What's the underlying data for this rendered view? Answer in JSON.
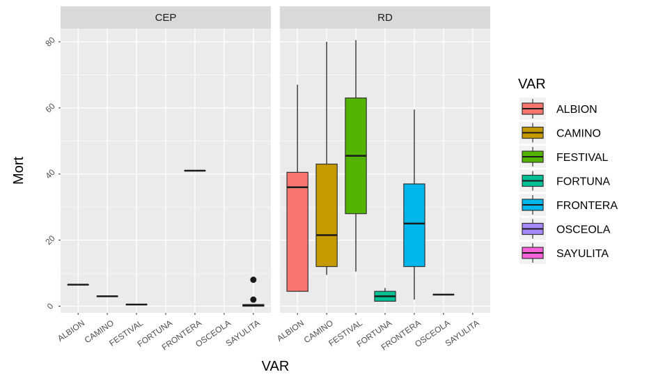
{
  "chart_data": {
    "type": "box",
    "xlabel": "VAR",
    "ylabel": "Mort",
    "ylim": [
      -2,
      84
    ],
    "yticks": [
      0,
      20,
      40,
      60,
      80
    ],
    "categories": [
      "ALBION",
      "CAMINO",
      "FESTIVAL",
      "FORTUNA",
      "FRONTERA",
      "OSCEOLA",
      "SAYULITA"
    ],
    "legend": {
      "title": "VAR",
      "position": "right",
      "entries": [
        {
          "label": "ALBION",
          "color": "#F8766D"
        },
        {
          "label": "CAMINO",
          "color": "#C49A00"
        },
        {
          "label": "FESTIVAL",
          "color": "#53B400"
        },
        {
          "label": "FORTUNA",
          "color": "#00C094"
        },
        {
          "label": "FRONTERA",
          "color": "#00B6EB"
        },
        {
          "label": "OSCEOLA",
          "color": "#A58AFF"
        },
        {
          "label": "SAYULITA",
          "color": "#FB61D7"
        }
      ]
    },
    "panels": [
      {
        "strip": "CEP",
        "boxes": [
          {
            "category": "ALBION",
            "min": 6.5,
            "q1": 6.5,
            "median": 6.5,
            "q3": 6.5,
            "max": 6.5,
            "outliers": []
          },
          {
            "category": "CAMINO",
            "min": 3,
            "q1": 3,
            "median": 3,
            "q3": 3,
            "max": 3,
            "outliers": []
          },
          {
            "category": "FESTIVAL",
            "min": 0.5,
            "q1": 0.5,
            "median": 0.5,
            "q3": 0.5,
            "max": 0.5,
            "outliers": []
          },
          {
            "category": "FRONTERA",
            "min": 41,
            "q1": 41,
            "median": 41,
            "q3": 41,
            "max": 41,
            "outliers": []
          },
          {
            "category": "SAYULITA",
            "min": 0,
            "q1": 0,
            "median": 0.3,
            "q3": 0.5,
            "max": 0.5,
            "outliers": [
              2,
              8
            ]
          }
        ]
      },
      {
        "strip": "RD",
        "boxes": [
          {
            "category": "ALBION",
            "min": 4.5,
            "q1": 4.5,
            "median": 36,
            "q3": 40.5,
            "max": 67,
            "outliers": []
          },
          {
            "category": "CAMINO",
            "min": 9.5,
            "q1": 12,
            "median": 21.5,
            "q3": 43,
            "max": 80,
            "outliers": []
          },
          {
            "category": "FESTIVAL",
            "min": 10.5,
            "q1": 28,
            "median": 45.5,
            "q3": 63,
            "max": 80.5,
            "outliers": []
          },
          {
            "category": "FORTUNA",
            "min": 1.5,
            "q1": 1.5,
            "median": 3,
            "q3": 4.5,
            "max": 5.5,
            "outliers": []
          },
          {
            "category": "FRONTERA",
            "min": 2,
            "q1": 12,
            "median": 25,
            "q3": 37,
            "max": 59.5,
            "outliers": []
          },
          {
            "category": "OSCEOLA",
            "min": 3.5,
            "q1": 3.5,
            "median": 3.5,
            "q3": 3.5,
            "max": 3.5,
            "outliers": []
          }
        ]
      }
    ]
  }
}
